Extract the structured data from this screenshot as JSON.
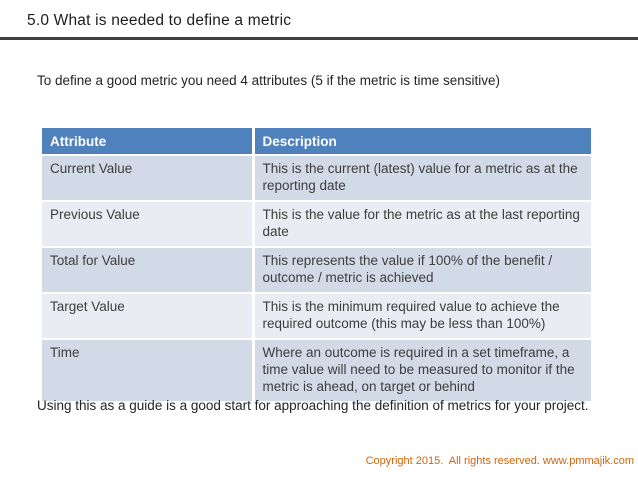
{
  "slide": {
    "title": "5.0 What is needed to define a metric",
    "intro": "To define a good metric you need 4 attributes (5 if the metric is time sensitive)",
    "outro": "Using this as a guide is a good start for approaching the definition of metrics for your project.",
    "copyright": "Copyright 2015.  All rights reserved. www.pmmajik.com"
  },
  "table": {
    "headers": [
      "Attribute",
      "Description"
    ],
    "rows": [
      {
        "attribute": "Current Value",
        "description": "This is the current (latest) value for a metric as at the reporting date"
      },
      {
        "attribute": "Previous Value",
        "description": "This is the value for the metric as at the last reporting date"
      },
      {
        "attribute": "Total for Value",
        "description": "This represents the value if 100% of the benefit / outcome / metric is achieved"
      },
      {
        "attribute": "Target Value",
        "description": "This is the minimum required value to achieve the required outcome (this may be less than 100%)"
      },
      {
        "attribute": "Time",
        "description": "Where an outcome is required in a set timeframe, a time value will need to be measured to monitor if the metric is ahead, on target or behind"
      }
    ]
  },
  "colors": {
    "table_header_bg": "#4F81BD",
    "table_header_text": "#FFFFFF",
    "row_band_dark": "#D3DAE7",
    "row_band_light": "#E9ECF3",
    "title_divider": "#3F3F3F",
    "body_text": "#242424",
    "copyright_text": "#CF660C",
    "background": "#FFFFFF"
  }
}
